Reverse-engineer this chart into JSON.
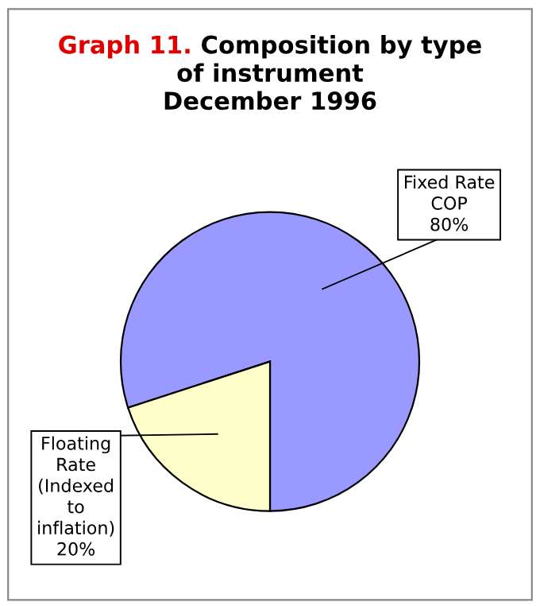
{
  "chart_data": {
    "type": "pie",
    "title": "Composition by type\nof instrument\nDecember 1996",
    "annotations": [
      "Graph 11."
    ],
    "categories": [
      "Fixed Rate\nCOP",
      "Floating\nRate\n(Indexed\nto\ninflation)"
    ],
    "values": [
      80,
      20
    ],
    "value_labels": [
      "80%",
      "20%"
    ],
    "colors": [
      "#9999ff",
      "#ffffcc"
    ]
  }
}
